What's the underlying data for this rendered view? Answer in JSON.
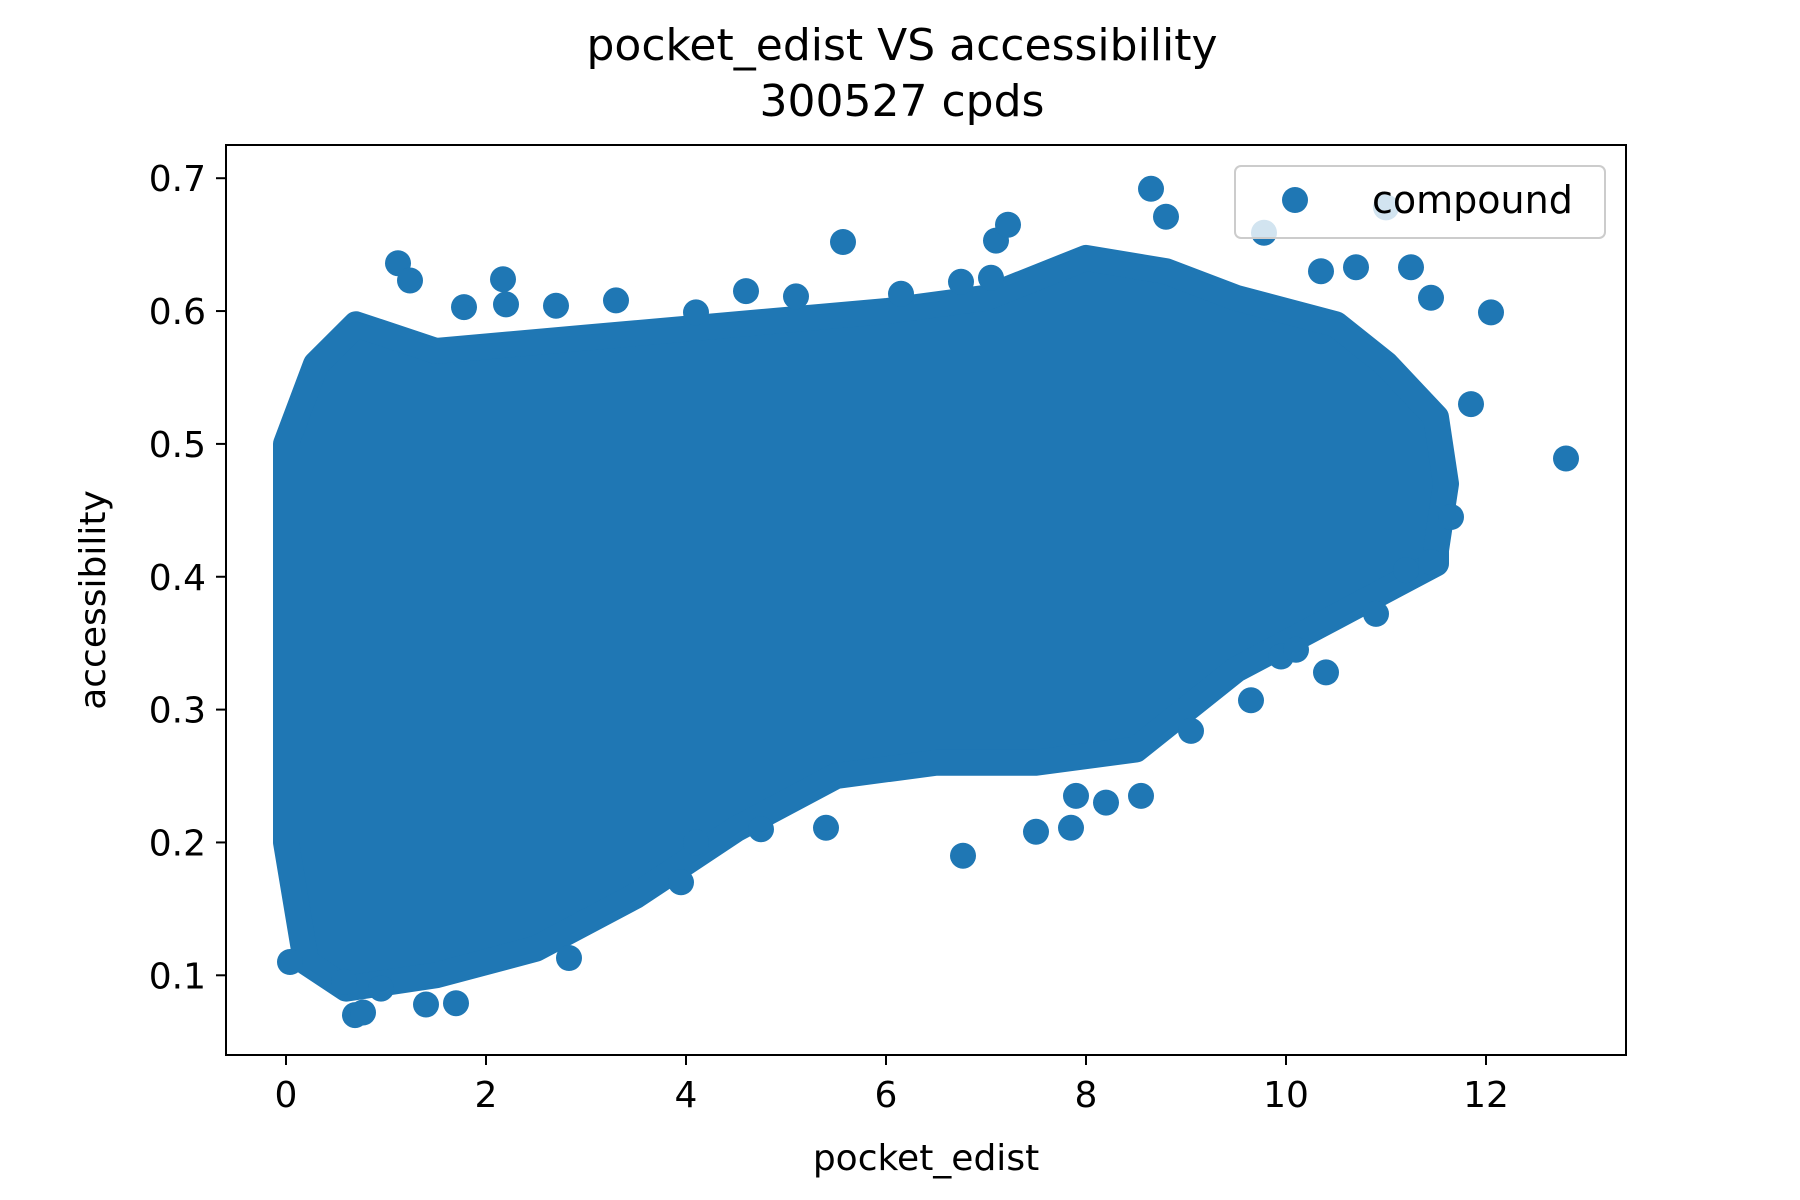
{
  "chart_data": {
    "type": "scatter",
    "title": "pocket_edist VS accessibility",
    "subtitle": "300527 cpds",
    "xlabel": "pocket_edist",
    "ylabel": "accessibility",
    "xlim": [
      -0.6,
      13.4
    ],
    "ylim": [
      0.04,
      0.725
    ],
    "xticks": [
      0,
      2,
      4,
      6,
      8,
      10,
      12
    ],
    "yticks": [
      0.1,
      0.2,
      0.3,
      0.4,
      0.5,
      0.6,
      0.7
    ],
    "grid": false,
    "legend": {
      "position": "top-right",
      "entries": [
        "compound"
      ]
    },
    "colors": {
      "series": "#1f77b4"
    },
    "series": [
      {
        "name": "compound",
        "cloud_envelope": {
          "upper": [
            [
              0.0,
              0.5
            ],
            [
              0.3,
              0.56
            ],
            [
              0.7,
              0.59
            ],
            [
              1.5,
              0.57
            ],
            [
              3.0,
              0.58
            ],
            [
              4.5,
              0.59
            ],
            [
              6.0,
              0.6
            ],
            [
              7.0,
              0.61
            ],
            [
              8.0,
              0.64
            ],
            [
              8.8,
              0.63
            ],
            [
              9.5,
              0.61
            ],
            [
              10.5,
              0.59
            ],
            [
              11.0,
              0.56
            ],
            [
              11.5,
              0.52
            ],
            [
              11.6,
              0.47
            ],
            [
              11.5,
              0.42
            ]
          ],
          "lower": [
            [
              0.0,
              0.2
            ],
            [
              0.2,
              0.11
            ],
            [
              0.6,
              0.09
            ],
            [
              1.5,
              0.1
            ],
            [
              2.5,
              0.12
            ],
            [
              3.5,
              0.16
            ],
            [
              4.5,
              0.21
            ],
            [
              5.5,
              0.25
            ],
            [
              6.5,
              0.26
            ],
            [
              7.5,
              0.26
            ],
            [
              8.5,
              0.27
            ],
            [
              9.5,
              0.33
            ],
            [
              10.5,
              0.37
            ],
            [
              11.0,
              0.39
            ],
            [
              11.5,
              0.41
            ]
          ]
        },
        "points": [
          [
            0.69,
            0.07
          ],
          [
            0.77,
            0.072
          ],
          [
            1.4,
            0.078
          ],
          [
            1.7,
            0.079
          ],
          [
            0.95,
            0.09
          ],
          [
            0.58,
            0.095
          ],
          [
            0.04,
            0.11
          ],
          [
            2.83,
            0.113
          ],
          [
            3.95,
            0.17
          ],
          [
            1.12,
            0.636
          ],
          [
            1.24,
            0.623
          ],
          [
            2.17,
            0.624
          ],
          [
            2.2,
            0.605
          ],
          [
            1.78,
            0.603
          ],
          [
            3.3,
            0.608
          ],
          [
            2.7,
            0.604
          ],
          [
            4.1,
            0.599
          ],
          [
            4.6,
            0.615
          ],
          [
            5.1,
            0.611
          ],
          [
            5.57,
            0.652
          ],
          [
            6.15,
            0.613
          ],
          [
            6.75,
            0.622
          ],
          [
            7.05,
            0.625
          ],
          [
            7.1,
            0.653
          ],
          [
            7.22,
            0.665
          ],
          [
            8.65,
            0.692
          ],
          [
            8.8,
            0.671
          ],
          [
            9.78,
            0.659
          ],
          [
            11.0,
            0.678
          ],
          [
            10.35,
            0.63
          ],
          [
            10.7,
            0.633
          ],
          [
            11.25,
            0.633
          ],
          [
            11.45,
            0.61
          ],
          [
            12.05,
            0.599
          ],
          [
            11.85,
            0.53
          ],
          [
            12.8,
            0.489
          ],
          [
            11.65,
            0.445
          ],
          [
            11.45,
            0.411
          ],
          [
            10.4,
            0.328
          ],
          [
            9.65,
            0.307
          ],
          [
            9.05,
            0.284
          ],
          [
            7.85,
            0.211
          ],
          [
            7.5,
            0.208
          ],
          [
            6.77,
            0.19
          ],
          [
            5.4,
            0.211
          ],
          [
            4.75,
            0.21
          ],
          [
            4.1,
            0.2
          ],
          [
            8.55,
            0.235
          ],
          [
            8.2,
            0.23
          ],
          [
            7.9,
            0.235
          ],
          [
            10.9,
            0.372
          ],
          [
            11.2,
            0.405
          ],
          [
            9.95,
            0.34
          ],
          [
            10.1,
            0.345
          ]
        ]
      }
    ]
  }
}
